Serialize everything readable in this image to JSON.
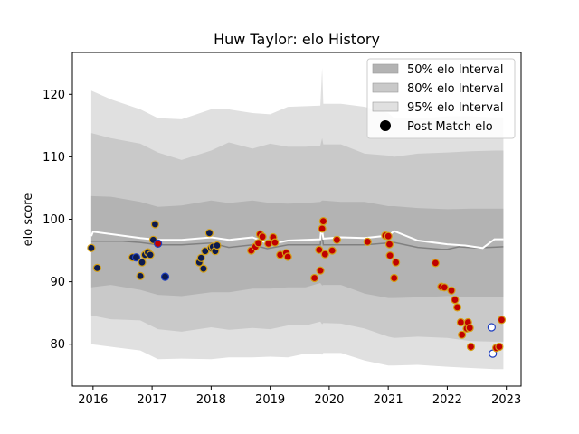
{
  "chart_data": {
    "type": "scatter",
    "title": "Huw Taylor: elo History",
    "xlabel": "",
    "ylabel": "elo score",
    "xlim": [
      2015.65,
      2023.25
    ],
    "ylim": [
      73.3,
      126.7
    ],
    "x_ticks": [
      2016,
      2017,
      2018,
      2019,
      2020,
      2021,
      2022,
      2023
    ],
    "x_tick_labels": [
      "2016",
      "2017",
      "2018",
      "2019",
      "2020",
      "2021",
      "2022",
      "2023"
    ],
    "y_ticks": [
      80,
      90,
      100,
      110,
      120
    ],
    "y_tick_labels": [
      "80",
      "90",
      "100",
      "110",
      "120"
    ],
    "grid": false,
    "legend_position": "top-right",
    "legend": [
      {
        "label": "50% elo Interval",
        "kind": "patch",
        "color": "#b3b3b3"
      },
      {
        "label": "80% elo Interval",
        "kind": "patch",
        "color": "#c9c9c9"
      },
      {
        "label": "95% elo Interval",
        "kind": "patch",
        "color": "#e0e0e0"
      },
      {
        "label": "Post Match elo",
        "kind": "marker",
        "color": "#000000"
      }
    ],
    "colors": {
      "band50": "#b3b3b3",
      "band80": "#c9c9c9",
      "band95": "#e0e0e0",
      "median_line": "#808080",
      "mean_line": "#ffffff",
      "point_navy": "#0d1b4f",
      "point_red": "#c00000",
      "point_white": "#ffffff",
      "edge_gold": "#d4a017",
      "edge_blue": "#1f3fbf"
    },
    "intervals": {
      "x": [
        2015.97,
        2016.3,
        2016.8,
        2017.1,
        2017.5,
        2018.0,
        2018.3,
        2018.7,
        2019.0,
        2019.3,
        2019.6,
        2019.85,
        2019.88,
        2019.9,
        2020.2,
        2020.6,
        2021.0,
        2021.1,
        2021.5,
        2022.0,
        2022.4,
        2022.8,
        2022.95
      ],
      "band95": {
        "upper": [
          120.6,
          119.2,
          117.6,
          116.2,
          116.0,
          117.6,
          117.6,
          117.0,
          116.8,
          118.0,
          118.1,
          118.2,
          124.2,
          118.5,
          118.5,
          118.0,
          117.0,
          116.2,
          116.1,
          116.5,
          116.5,
          116.3,
          116.3
        ],
        "lower": [
          80.0,
          79.6,
          79.0,
          77.6,
          77.7,
          77.6,
          77.9,
          77.9,
          78.0,
          77.9,
          78.5,
          78.5,
          78.3,
          78.6,
          78.6,
          77.4,
          76.6,
          76.6,
          76.7,
          76.4,
          76.2,
          76.0,
          76.0
        ]
      },
      "band80": {
        "upper": [
          113.8,
          113.0,
          112.1,
          110.7,
          109.5,
          111.0,
          112.3,
          111.3,
          112.1,
          111.6,
          111.6,
          111.8,
          113.0,
          112.0,
          112.0,
          110.5,
          110.2,
          110.0,
          110.5,
          110.7,
          110.9,
          111.0,
          111.0
        ],
        "lower": [
          84.6,
          84.0,
          83.8,
          82.4,
          82.0,
          82.7,
          82.3,
          82.6,
          82.4,
          83.0,
          83.0,
          83.6,
          83.2,
          83.4,
          83.3,
          82.5,
          81.2,
          81.0,
          81.2,
          81.0,
          80.5,
          80.4,
          80.4
        ]
      },
      "band50": {
        "upper": [
          103.7,
          103.6,
          102.8,
          102.0,
          102.2,
          103.0,
          102.6,
          103.0,
          102.6,
          102.5,
          102.6,
          102.8,
          103.0,
          103.0,
          102.8,
          102.8,
          102.1,
          102.1,
          101.8,
          101.6,
          101.7,
          101.7,
          101.7
        ],
        "lower": [
          89.1,
          89.5,
          88.7,
          87.9,
          87.7,
          88.3,
          88.3,
          88.9,
          88.9,
          89.1,
          89.1,
          89.8,
          89.4,
          89.5,
          89.5,
          88.1,
          87.4,
          87.4,
          87.5,
          87.7,
          87.5,
          87.5,
          87.5
        ]
      }
    },
    "median_line": {
      "x": [
        2015.97,
        2016.5,
        2016.8,
        2017.1,
        2017.5,
        2018.0,
        2018.3,
        2018.7,
        2018.95,
        2019.3,
        2019.85,
        2019.87,
        2019.9,
        2020.2,
        2020.6,
        2021.1,
        2021.5,
        2021.9,
        2022.0,
        2022.2,
        2022.5,
        2022.95
      ],
      "y": [
        96.5,
        96.5,
        96.3,
        95.9,
        95.9,
        96.2,
        95.5,
        95.9,
        95.3,
        95.9,
        95.9,
        98.6,
        95.9,
        95.9,
        95.9,
        96.3,
        95.5,
        95.2,
        95.2,
        95.6,
        95.4,
        95.6
      ]
    },
    "mean_line": {
      "x": [
        2015.97,
        2016.0,
        2016.8,
        2017.1,
        2017.5,
        2018.0,
        2018.3,
        2018.7,
        2019.0,
        2019.3,
        2019.85,
        2019.87,
        2019.9,
        2020.2,
        2020.6,
        2021.0,
        2021.1,
        2021.5,
        2022.0,
        2022.3,
        2022.6,
        2022.8,
        2022.95
      ],
      "y": [
        97.3,
        98.0,
        97.0,
        96.7,
        96.7,
        97.1,
        96.7,
        97.1,
        96.0,
        96.6,
        96.8,
        98.9,
        96.9,
        97.1,
        97.0,
        97.4,
        98.1,
        96.6,
        96.0,
        95.8,
        95.4,
        96.8,
        96.8
      ]
    },
    "points": [
      {
        "x": 2015.97,
        "y": 95.4,
        "style": "navy"
      },
      {
        "x": 2016.07,
        "y": 92.2,
        "style": "navy"
      },
      {
        "x": 2016.67,
        "y": 93.9,
        "style": "navy"
      },
      {
        "x": 2016.73,
        "y": 93.9,
        "style": "navy_blue"
      },
      {
        "x": 2016.8,
        "y": 90.9,
        "style": "navy"
      },
      {
        "x": 2016.83,
        "y": 93.1,
        "style": "navy"
      },
      {
        "x": 2016.88,
        "y": 94.3,
        "style": "navy"
      },
      {
        "x": 2016.93,
        "y": 94.7,
        "style": "navy"
      },
      {
        "x": 2016.97,
        "y": 94.3,
        "style": "navy"
      },
      {
        "x": 2017.02,
        "y": 96.7,
        "style": "navy"
      },
      {
        "x": 2017.05,
        "y": 99.2,
        "style": "navy"
      },
      {
        "x": 2017.1,
        "y": 96.1,
        "style": "red_blue"
      },
      {
        "x": 2017.22,
        "y": 90.8,
        "style": "navy_blue"
      },
      {
        "x": 2017.8,
        "y": 93.1,
        "style": "navy"
      },
      {
        "x": 2017.83,
        "y": 93.8,
        "style": "navy"
      },
      {
        "x": 2017.87,
        "y": 92.1,
        "style": "navy"
      },
      {
        "x": 2017.9,
        "y": 94.9,
        "style": "navy"
      },
      {
        "x": 2017.97,
        "y": 97.8,
        "style": "navy"
      },
      {
        "x": 2018.0,
        "y": 95.4,
        "style": "navy"
      },
      {
        "x": 2018.03,
        "y": 95.6,
        "style": "navy"
      },
      {
        "x": 2018.07,
        "y": 94.9,
        "style": "navy"
      },
      {
        "x": 2018.1,
        "y": 95.8,
        "style": "navy"
      },
      {
        "x": 2018.68,
        "y": 95.0,
        "style": "red"
      },
      {
        "x": 2018.75,
        "y": 95.6,
        "style": "red"
      },
      {
        "x": 2018.8,
        "y": 96.2,
        "style": "red"
      },
      {
        "x": 2018.83,
        "y": 97.6,
        "style": "red"
      },
      {
        "x": 2018.87,
        "y": 97.2,
        "style": "red"
      },
      {
        "x": 2018.97,
        "y": 96.1,
        "style": "red"
      },
      {
        "x": 2019.05,
        "y": 97.1,
        "style": "red"
      },
      {
        "x": 2019.08,
        "y": 96.3,
        "style": "red"
      },
      {
        "x": 2019.17,
        "y": 94.3,
        "style": "red"
      },
      {
        "x": 2019.27,
        "y": 94.6,
        "style": "red"
      },
      {
        "x": 2019.3,
        "y": 94.0,
        "style": "red"
      },
      {
        "x": 2019.75,
        "y": 90.6,
        "style": "red"
      },
      {
        "x": 2019.83,
        "y": 95.1,
        "style": "red"
      },
      {
        "x": 2019.85,
        "y": 91.8,
        "style": "red"
      },
      {
        "x": 2019.88,
        "y": 98.5,
        "style": "red"
      },
      {
        "x": 2019.9,
        "y": 99.7,
        "style": "red"
      },
      {
        "x": 2019.93,
        "y": 94.4,
        "style": "red"
      },
      {
        "x": 2020.05,
        "y": 95.0,
        "style": "red"
      },
      {
        "x": 2020.13,
        "y": 96.7,
        "style": "red"
      },
      {
        "x": 2020.65,
        "y": 96.4,
        "style": "red"
      },
      {
        "x": 2020.95,
        "y": 97.4,
        "style": "red"
      },
      {
        "x": 2021.0,
        "y": 97.3,
        "style": "red"
      },
      {
        "x": 2021.02,
        "y": 96.0,
        "style": "red"
      },
      {
        "x": 2021.03,
        "y": 94.2,
        "style": "red"
      },
      {
        "x": 2021.1,
        "y": 90.6,
        "style": "red"
      },
      {
        "x": 2021.13,
        "y": 93.1,
        "style": "red"
      },
      {
        "x": 2021.8,
        "y": 93.0,
        "style": "red"
      },
      {
        "x": 2021.9,
        "y": 89.2,
        "style": "red"
      },
      {
        "x": 2021.95,
        "y": 89.1,
        "style": "red"
      },
      {
        "x": 2022.07,
        "y": 88.6,
        "style": "red"
      },
      {
        "x": 2022.13,
        "y": 87.1,
        "style": "red"
      },
      {
        "x": 2022.17,
        "y": 85.9,
        "style": "red"
      },
      {
        "x": 2022.23,
        "y": 83.5,
        "style": "red"
      },
      {
        "x": 2022.25,
        "y": 81.5,
        "style": "red"
      },
      {
        "x": 2022.33,
        "y": 82.5,
        "style": "red"
      },
      {
        "x": 2022.35,
        "y": 83.5,
        "style": "red"
      },
      {
        "x": 2022.38,
        "y": 82.6,
        "style": "red"
      },
      {
        "x": 2022.4,
        "y": 79.6,
        "style": "red"
      },
      {
        "x": 2022.75,
        "y": 82.7,
        "style": "white_blue"
      },
      {
        "x": 2022.77,
        "y": 78.5,
        "style": "white_blue"
      },
      {
        "x": 2022.83,
        "y": 79.4,
        "style": "red"
      },
      {
        "x": 2022.88,
        "y": 79.6,
        "style": "red"
      },
      {
        "x": 2022.92,
        "y": 83.9,
        "style": "red"
      }
    ]
  }
}
